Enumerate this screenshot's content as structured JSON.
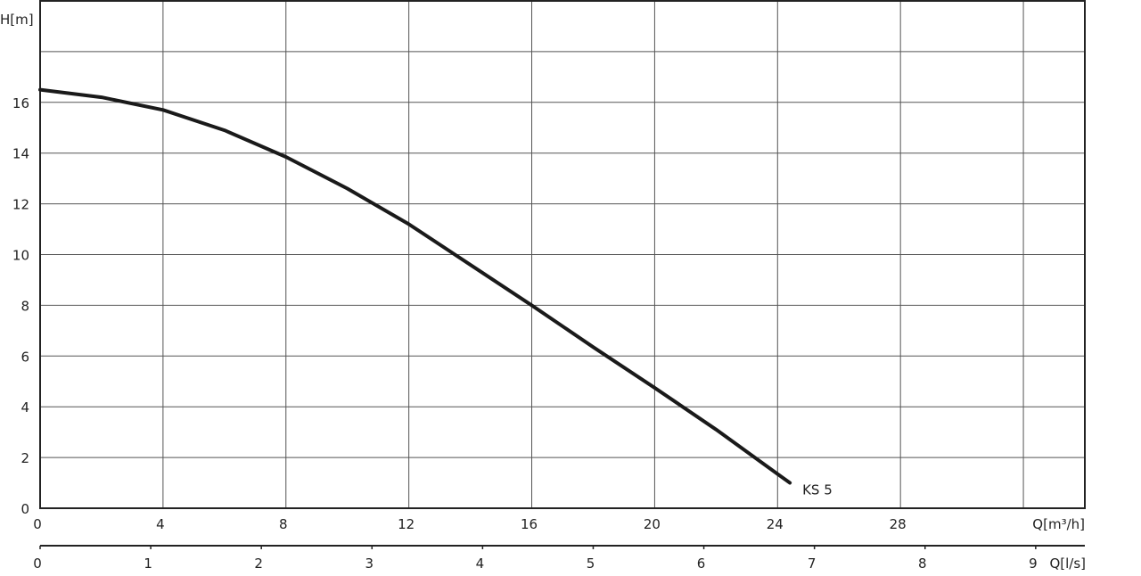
{
  "chart_data": {
    "type": "line",
    "title": "",
    "xlabel": "Q[m³/h]",
    "xlabel_secondary": "Q[l/s]",
    "ylabel": "H[m]",
    "xlim": [
      0,
      34
    ],
    "ylim": [
      0,
      20
    ],
    "grid": true,
    "x_ticks": [
      0,
      4,
      8,
      12,
      16,
      20,
      24,
      28
    ],
    "y_ticks": [
      0,
      2,
      4,
      6,
      8,
      10,
      12,
      14,
      16
    ],
    "x_secondary_ticks": [
      0,
      1,
      2,
      3,
      4,
      5,
      6,
      7,
      8,
      9
    ],
    "series": [
      {
        "name": "KS 5",
        "color": "#1a1a1a",
        "x": [
          0,
          2,
          4,
          6,
          8,
          10,
          12,
          14,
          16,
          18,
          20,
          22,
          24,
          24.4
        ],
        "y": [
          16.5,
          16.2,
          15.7,
          14.9,
          13.85,
          12.6,
          11.2,
          9.6,
          8.0,
          6.35,
          4.75,
          3.1,
          1.35,
          1.0
        ]
      }
    ]
  }
}
